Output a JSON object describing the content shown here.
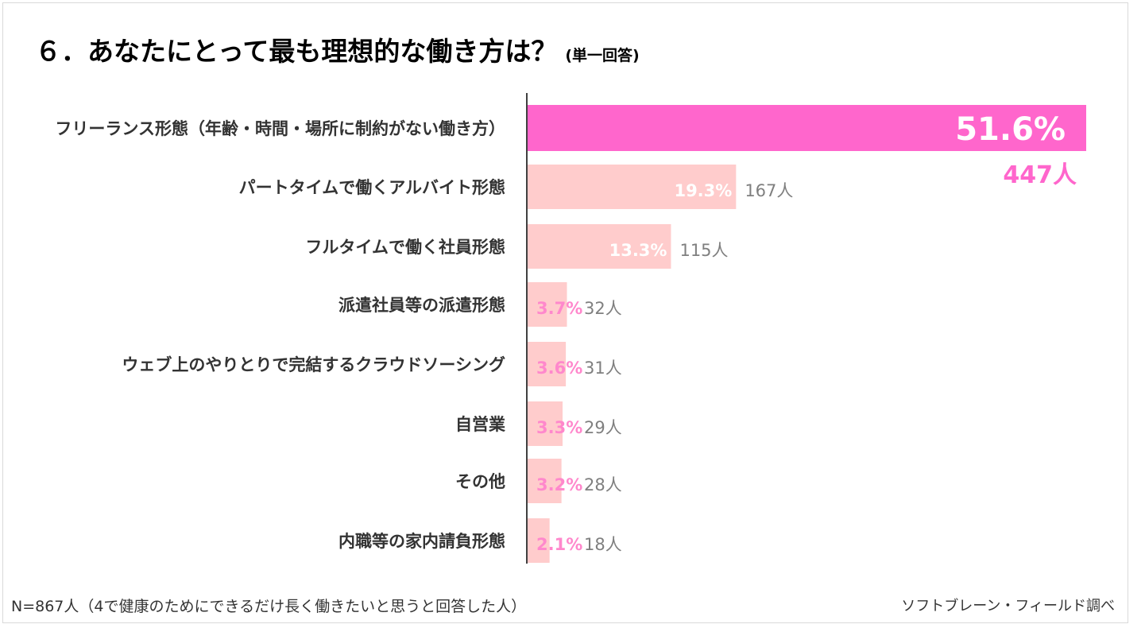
{
  "title": {
    "main": "６．あなたにとって最も理想的な働き方は？",
    "sub": "(単一回答)"
  },
  "footer": {
    "note": "N=867人（4で健康のためにできるだけ長く働きたいと思うと回答した人）",
    "source": "ソフトブレーン・フィールド調べ"
  },
  "colors": {
    "highlight_bar": "#ff66cc",
    "bar": "#ffcccc",
    "highlight_label": "#ff66cc",
    "small_pct_label": "#ff88cc",
    "count_label": "#7f7f7f",
    "axis": "#404040"
  },
  "chart_data": {
    "type": "bar",
    "orientation": "horizontal",
    "categories": [
      "フリーランス形態（年齢・時間・場所に制約がない働き方）",
      "パートタイムで働くアルバイト形態",
      "フルタイムで働く社員形態",
      "派遣社員等の派遣形態",
      "ウェブ上のやりとりで完結するクラウドソーシング",
      "自営業",
      "その他",
      "内職等の家内請負形態"
    ],
    "values": [
      51.6,
      19.3,
      13.3,
      3.7,
      3.6,
      3.3,
      3.2,
      2.1
    ],
    "value_labels": [
      "51.6%",
      "19.3%",
      "13.3%",
      "3.7%",
      "3.6%",
      "3.3%",
      "3.2%",
      "2.1%"
    ],
    "counts": [
      "447人",
      "167人",
      "115人",
      "32人",
      "31人",
      "29人",
      "28人",
      "18人"
    ],
    "highlight_index": 0,
    "xlim": [
      0,
      51.6
    ],
    "grid": false,
    "legend": "none"
  }
}
